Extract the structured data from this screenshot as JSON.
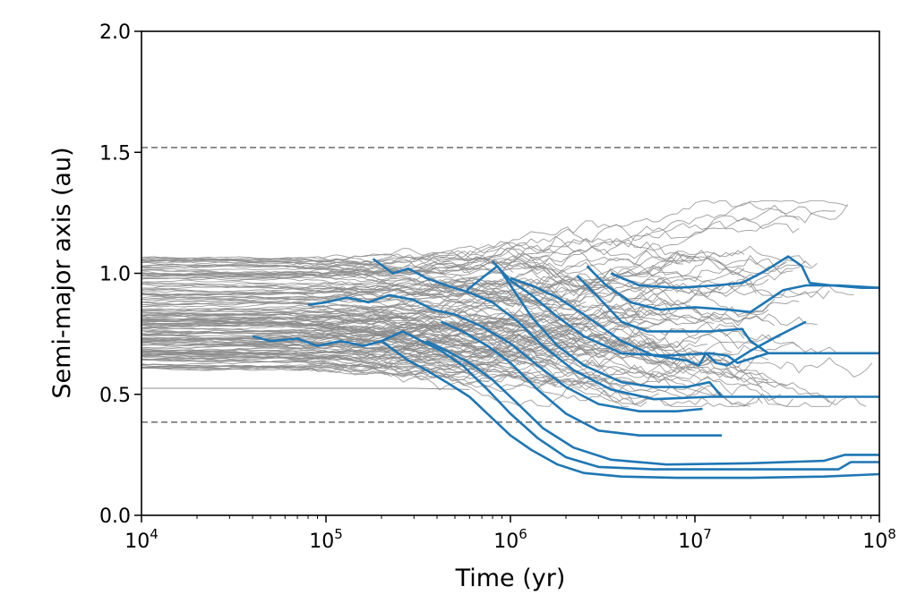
{
  "chart_data": {
    "type": "line",
    "title": "",
    "xlabel": "Time (yr)",
    "ylabel": "Semi-major axis (au)",
    "xscale": "log",
    "xlim": [
      10000,
      100000000
    ],
    "ylim": [
      0.0,
      2.0
    ],
    "x_ticks": [
      {
        "value": 10000,
        "label": "10",
        "exp": "4"
      },
      {
        "value": 100000,
        "label": "10",
        "exp": "5"
      },
      {
        "value": 1000000,
        "label": "10",
        "exp": "6"
      },
      {
        "value": 10000000,
        "label": "10",
        "exp": "7"
      },
      {
        "value": 100000000,
        "label": "10",
        "exp": "8"
      }
    ],
    "y_ticks": [
      {
        "value": 0.0,
        "label": "0.0"
      },
      {
        "value": 0.5,
        "label": "0.5"
      },
      {
        "value": 1.0,
        "label": "1.0"
      },
      {
        "value": 1.5,
        "label": "1.5"
      },
      {
        "value": 2.0,
        "label": "2.0"
      }
    ],
    "reference_lines": [
      {
        "y": 1.52,
        "style": "dashed",
        "color": "#808080"
      },
      {
        "y": 0.385,
        "style": "dashed",
        "color": "#808080"
      }
    ],
    "colors": {
      "background_tracks": "#8c8c8c",
      "highlight_tracks": "#1f77b4",
      "reference": "#808080"
    },
    "grid": false,
    "legend": "none",
    "highlight_series": [
      {
        "points": [
          [
            40000,
            0.74
          ],
          [
            50000,
            0.72
          ],
          [
            70000,
            0.73
          ],
          [
            90000,
            0.7
          ],
          [
            120000,
            0.72
          ],
          [
            160000,
            0.7
          ],
          [
            200000,
            0.72
          ],
          [
            280000,
            0.64
          ],
          [
            350000,
            0.6
          ],
          [
            450000,
            0.55
          ],
          [
            600000,
            0.49
          ],
          [
            800000,
            0.4
          ],
          [
            1000000,
            0.33
          ],
          [
            1300000,
            0.27
          ],
          [
            1800000,
            0.21
          ],
          [
            2500000,
            0.175
          ],
          [
            4000000,
            0.16
          ],
          [
            8000000,
            0.155
          ],
          [
            20000000,
            0.155
          ],
          [
            50000000,
            0.16
          ],
          [
            100000000,
            0.17
          ]
        ]
      },
      {
        "points": [
          [
            200000,
            0.72
          ],
          [
            260000,
            0.76
          ],
          [
            330000,
            0.72
          ],
          [
            420000,
            0.68
          ],
          [
            550000,
            0.62
          ],
          [
            750000,
            0.52
          ],
          [
            1000000,
            0.42
          ],
          [
            1400000,
            0.32
          ],
          [
            2000000,
            0.24
          ],
          [
            3000000,
            0.2
          ],
          [
            6000000,
            0.19
          ],
          [
            20000000,
            0.19
          ],
          [
            60000000,
            0.19
          ],
          [
            70000000,
            0.22
          ],
          [
            100000000,
            0.22
          ]
        ]
      },
      {
        "points": [
          [
            350000,
            0.72
          ],
          [
            450000,
            0.68
          ],
          [
            600000,
            0.63
          ],
          [
            800000,
            0.56
          ],
          [
            1100000,
            0.46
          ],
          [
            1500000,
            0.36
          ],
          [
            2200000,
            0.28
          ],
          [
            3500000,
            0.23
          ],
          [
            7000000,
            0.21
          ],
          [
            20000000,
            0.215
          ],
          [
            50000000,
            0.225
          ],
          [
            65000000,
            0.25
          ],
          [
            100000000,
            0.25
          ]
        ]
      },
      {
        "points": [
          [
            420000,
            0.8
          ],
          [
            550000,
            0.76
          ],
          [
            750000,
            0.7
          ],
          [
            1000000,
            0.63
          ],
          [
            1400000,
            0.52
          ],
          [
            2000000,
            0.42
          ],
          [
            3000000,
            0.35
          ],
          [
            5000000,
            0.33
          ],
          [
            10000000,
            0.33
          ],
          [
            14000000,
            0.33
          ]
        ]
      },
      {
        "points": [
          [
            80000,
            0.87
          ],
          [
            100000,
            0.88
          ],
          [
            130000,
            0.9
          ],
          [
            170000,
            0.88
          ],
          [
            220000,
            0.91
          ],
          [
            300000,
            0.89
          ],
          [
            380000,
            0.85
          ],
          [
            500000,
            0.83
          ],
          [
            700000,
            0.78
          ],
          [
            1000000,
            0.71
          ],
          [
            1400000,
            0.62
          ],
          [
            2000000,
            0.53
          ],
          [
            3000000,
            0.46
          ],
          [
            5000000,
            0.43
          ],
          [
            8000000,
            0.43
          ],
          [
            11000000,
            0.44
          ]
        ]
      },
      {
        "points": [
          [
            180000,
            1.06
          ],
          [
            230000,
            1.0
          ],
          [
            280000,
            1.02
          ],
          [
            350000,
            0.98
          ],
          [
            450000,
            0.95
          ],
          [
            600000,
            0.92
          ],
          [
            800000,
            0.88
          ],
          [
            1100000,
            0.8
          ],
          [
            1500000,
            0.7
          ],
          [
            2200000,
            0.6
          ],
          [
            3500000,
            0.52
          ],
          [
            6000000,
            0.48
          ],
          [
            12000000,
            0.49
          ],
          [
            30000000,
            0.49
          ],
          [
            100000000,
            0.49
          ]
        ]
      },
      {
        "points": [
          [
            580000,
            0.93
          ],
          [
            700000,
            0.98
          ],
          [
            850000,
            1.03
          ],
          [
            1000000,
            0.95
          ],
          [
            1300000,
            0.82
          ],
          [
            1800000,
            0.7
          ],
          [
            2500000,
            0.62
          ],
          [
            4000000,
            0.55
          ],
          [
            6000000,
            0.53
          ],
          [
            9000000,
            0.53
          ],
          [
            12000000,
            0.55
          ],
          [
            14000000,
            0.49
          ]
        ]
      },
      {
        "points": [
          [
            800000,
            1.05
          ],
          [
            1000000,
            0.97
          ],
          [
            1300000,
            0.91
          ],
          [
            1800000,
            0.82
          ],
          [
            2500000,
            0.74
          ],
          [
            4000000,
            0.67
          ],
          [
            7000000,
            0.66
          ],
          [
            12000000,
            0.67
          ],
          [
            15000000,
            0.66
          ],
          [
            17000000,
            0.63
          ],
          [
            25000000,
            0.67
          ],
          [
            50000000,
            0.67
          ],
          [
            100000000,
            0.67
          ]
        ]
      },
      {
        "points": [
          [
            1000000,
            0.98
          ],
          [
            1300000,
            0.95
          ],
          [
            1800000,
            0.9
          ],
          [
            2500000,
            0.83
          ],
          [
            4000000,
            0.72
          ],
          [
            6000000,
            0.66
          ],
          [
            9000000,
            0.64
          ],
          [
            10500000,
            0.62
          ],
          [
            11500000,
            0.67
          ],
          [
            13000000,
            0.63
          ],
          [
            15000000,
            0.62
          ],
          [
            20000000,
            0.68
          ],
          [
            28000000,
            0.74
          ],
          [
            40000000,
            0.8
          ]
        ]
      },
      {
        "points": [
          [
            2300000,
            0.99
          ],
          [
            3000000,
            0.9
          ],
          [
            4000000,
            0.8
          ],
          [
            5500000,
            0.76
          ],
          [
            8000000,
            0.76
          ],
          [
            12000000,
            0.76
          ],
          [
            18000000,
            0.77
          ],
          [
            20000000,
            0.72
          ],
          [
            25000000,
            0.67
          ]
        ]
      },
      {
        "points": [
          [
            2600000,
            1.03
          ],
          [
            3300000,
            0.95
          ],
          [
            4500000,
            0.88
          ],
          [
            6500000,
            0.85
          ],
          [
            10000000,
            0.86
          ],
          [
            15000000,
            0.85
          ],
          [
            20000000,
            0.84
          ],
          [
            24000000,
            0.88
          ],
          [
            30000000,
            0.93
          ],
          [
            40000000,
            0.95
          ],
          [
            60000000,
            0.95
          ],
          [
            100000000,
            0.94
          ]
        ]
      },
      {
        "points": [
          [
            3500000,
            1.0
          ],
          [
            5000000,
            0.95
          ],
          [
            8000000,
            0.94
          ],
          [
            13000000,
            0.95
          ],
          [
            18000000,
            0.96
          ],
          [
            24000000,
            1.01
          ],
          [
            32000000,
            1.07
          ],
          [
            38000000,
            1.03
          ],
          [
            42000000,
            0.96
          ],
          [
            55000000,
            0.95
          ],
          [
            80000000,
            0.94
          ],
          [
            100000000,
            0.94
          ]
        ]
      }
    ]
  }
}
